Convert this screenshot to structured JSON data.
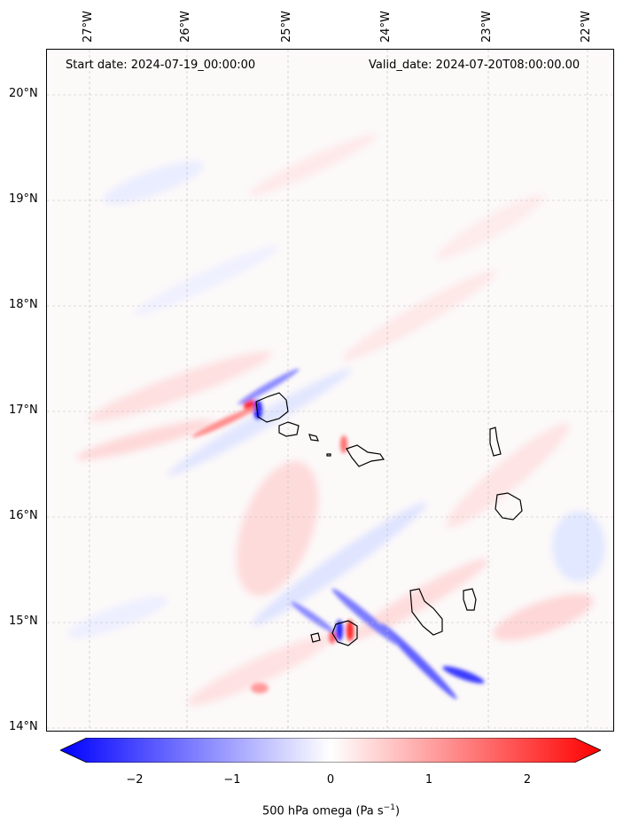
{
  "header": {
    "start_date": "Start date: 2024-07-19_00:00:00",
    "valid_date": "Valid_date: 2024-07-20T08:00:00.00"
  },
  "axes": {
    "lon_ticks": [
      "27°W",
      "26°W",
      "25°W",
      "24°W",
      "23°W",
      "22°W"
    ],
    "lat_ticks": [
      "20°N",
      "19°N",
      "18°N",
      "17°N",
      "16°N",
      "15°N",
      "14°N"
    ]
  },
  "colorbar": {
    "ticks": [
      "−2",
      "−1",
      "0",
      "1",
      "2"
    ],
    "label": "500 hPa omega (Pa s",
    "label_sup": "−1",
    "label_end": ")",
    "min_color": "#0000ff",
    "mid_color": "#ffffff",
    "max_color": "#ff0000",
    "range": [
      -2.6,
      2.6
    ]
  },
  "map": {
    "lon_range": [
      -27.4,
      -21.75
    ],
    "lat_range": [
      13.95,
      20.45
    ],
    "grid": true,
    "islands": [
      "Santo Antão",
      "São Vicente",
      "Santa Luzia",
      "São Nicolau",
      "Sal",
      "Boa Vista",
      "Maio",
      "Santiago",
      "Fogo",
      "Brava"
    ]
  }
}
